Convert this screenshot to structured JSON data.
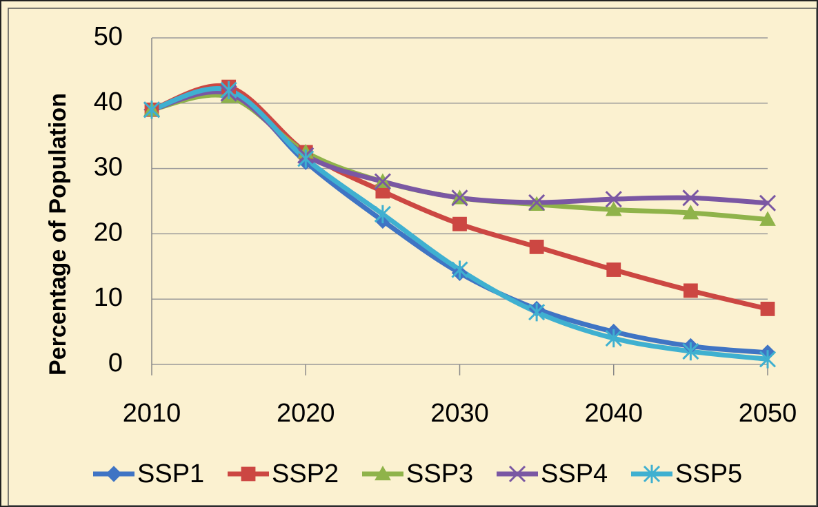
{
  "chart_data": {
    "type": "line",
    "y_label": "Percentage of Population",
    "x": [
      2010,
      2015,
      2020,
      2025,
      2030,
      2035,
      2040,
      2045,
      2050
    ],
    "xlim": [
      2010,
      2050
    ],
    "xticks": [
      2010,
      2020,
      2030,
      2040,
      2050
    ],
    "ylim": [
      0,
      50
    ],
    "yticks": [
      0,
      10,
      20,
      30,
      40,
      50
    ],
    "grid": true,
    "legend": "bottom",
    "series": [
      {
        "name": "SSP1",
        "color": "#3f74c4",
        "marker": "diamond",
        "values": [
          39,
          42,
          31,
          22,
          14,
          8.5,
          5,
          2.8,
          1.8
        ]
      },
      {
        "name": "SSP2",
        "color": "#cc4742",
        "marker": "square",
        "values": [
          39,
          42.5,
          32.5,
          26.5,
          21.5,
          18,
          14.5,
          11.3,
          8.5
        ]
      },
      {
        "name": "SSP3",
        "color": "#8fb34a",
        "marker": "triangle",
        "values": [
          39,
          41,
          32.5,
          28,
          25.5,
          24.5,
          23.7,
          23.2,
          22.2
        ]
      },
      {
        "name": "SSP4",
        "color": "#7a57a3",
        "marker": "x",
        "values": [
          39,
          41.5,
          32,
          28,
          25.5,
          24.8,
          25.3,
          25.5,
          24.7
        ]
      },
      {
        "name": "SSP5",
        "color": "#3fb0d0",
        "marker": "star",
        "values": [
          39,
          42,
          31.5,
          23,
          14.5,
          8,
          4,
          2,
          0.8
        ]
      }
    ]
  }
}
